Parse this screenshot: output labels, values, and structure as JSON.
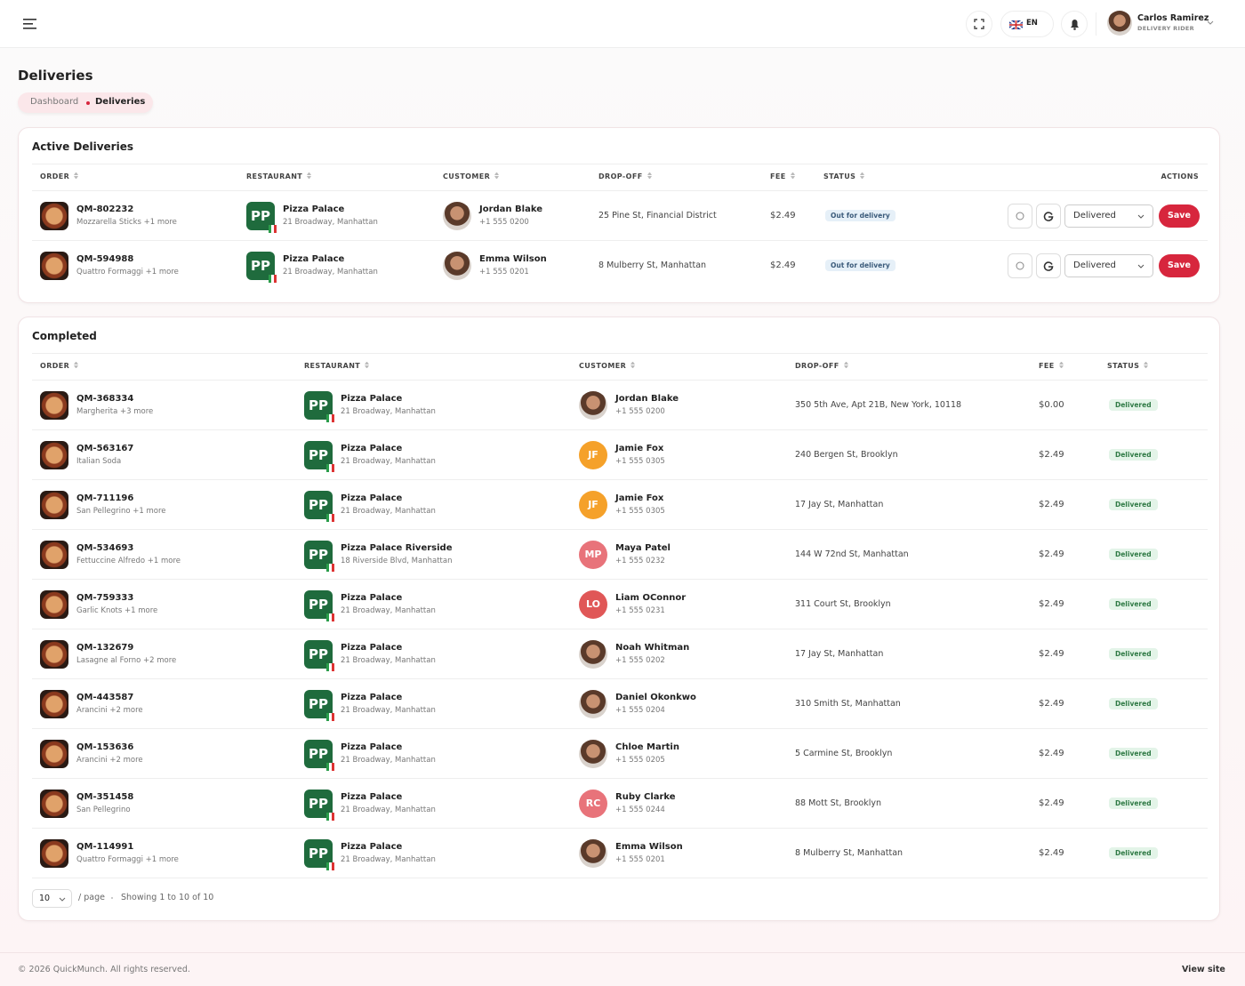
{
  "header": {
    "language": "EN",
    "user_name": "Carlos Ramirez",
    "user_role": "DELIVERY RIDER"
  },
  "page": {
    "title": "Deliveries",
    "breadcrumb": [
      "Dashboard",
      "Deliveries"
    ]
  },
  "restaurant_logo": "PP",
  "active": {
    "title": "Active Deliveries",
    "columns": [
      "ORDER",
      "RESTAURANT",
      "CUSTOMER",
      "DROP-OFF",
      "FEE",
      "STATUS",
      "ACTIONS"
    ],
    "rows": [
      {
        "order": "QM-802232",
        "items": "Mozzarella Sticks +1 more",
        "restaurant": "Pizza Palace",
        "restaurant_address": "21 Broadway, Manhattan",
        "customer": "Jordan Blake",
        "phone": "+1 555 0200",
        "dropoff": "25 Pine St, Financial District",
        "fee": "$2.49",
        "status": "Out for delivery",
        "select": "Delivered",
        "action": "Save"
      },
      {
        "order": "QM-594988",
        "items": "Quattro Formaggi +1 more",
        "restaurant": "Pizza Palace",
        "restaurant_address": "21 Broadway, Manhattan",
        "customer": "Emma Wilson",
        "phone": "+1 555 0201",
        "dropoff": "8 Mulberry St, Manhattan",
        "fee": "$2.49",
        "status": "Out for delivery",
        "select": "Delivered",
        "action": "Save"
      }
    ]
  },
  "completed": {
    "title": "Completed",
    "columns": [
      "ORDER",
      "RESTAURANT",
      "CUSTOMER",
      "DROP-OFF",
      "FEE",
      "STATUS"
    ],
    "rows": [
      {
        "order": "QM-368334",
        "items": "Margherita +3 more",
        "restaurant": "Pizza Palace",
        "restaurant_address": "21 Broadway, Manhattan",
        "customer": "Jordan Blake",
        "phone": "+1 555 0200",
        "dropoff": "350 5th Ave, Apt 21B, New York, 10118",
        "fee": "$0.00",
        "status": "Delivered"
      },
      {
        "order": "QM-563167",
        "items": "Italian Soda",
        "restaurant": "Pizza Palace",
        "restaurant_address": "21 Broadway, Manhattan",
        "customer": "Jamie Fox",
        "initials": "JF",
        "phone": "+1 555 0305",
        "dropoff": "240 Bergen St, Brooklyn",
        "fee": "$2.49",
        "status": "Delivered"
      },
      {
        "order": "QM-711196",
        "items": "San Pellegrino +1 more",
        "restaurant": "Pizza Palace",
        "restaurant_address": "21 Broadway, Manhattan",
        "customer": "Jamie Fox",
        "initials": "JF",
        "phone": "+1 555 0305",
        "dropoff": "17 Jay St, Manhattan",
        "fee": "$2.49",
        "status": "Delivered"
      },
      {
        "order": "QM-534693",
        "items": "Fettuccine Alfredo +1 more",
        "restaurant": "Pizza Palace Riverside",
        "restaurant_address": "18 Riverside Blvd, Manhattan",
        "customer": "Maya Patel",
        "initials": "MP",
        "phone": "+1 555 0232",
        "dropoff": "144 W 72nd St, Manhattan",
        "fee": "$2.49",
        "status": "Delivered"
      },
      {
        "order": "QM-759333",
        "items": "Garlic Knots +1 more",
        "restaurant": "Pizza Palace",
        "restaurant_address": "21 Broadway, Manhattan",
        "customer": "Liam OConnor",
        "initials": "LO",
        "phone": "+1 555 0231",
        "dropoff": "311 Court St, Brooklyn",
        "fee": "$2.49",
        "status": "Delivered"
      },
      {
        "order": "QM-132679",
        "items": "Lasagne al Forno +2 more",
        "restaurant": "Pizza Palace",
        "restaurant_address": "21 Broadway, Manhattan",
        "customer": "Noah Whitman",
        "phone": "+1 555 0202",
        "dropoff": "17 Jay St, Manhattan",
        "fee": "$2.49",
        "status": "Delivered"
      },
      {
        "order": "QM-443587",
        "items": "Arancini +2 more",
        "restaurant": "Pizza Palace",
        "restaurant_address": "21 Broadway, Manhattan",
        "customer": "Daniel Okonkwo",
        "phone": "+1 555 0204",
        "dropoff": "310 Smith St, Manhattan",
        "fee": "$2.49",
        "status": "Delivered"
      },
      {
        "order": "QM-153636",
        "items": "Arancini +2 more",
        "restaurant": "Pizza Palace",
        "restaurant_address": "21 Broadway, Manhattan",
        "customer": "Chloe Martin",
        "phone": "+1 555 0205",
        "dropoff": "5 Carmine St, Brooklyn",
        "fee": "$2.49",
        "status": "Delivered"
      },
      {
        "order": "QM-351458",
        "items": "San Pellegrino",
        "restaurant": "Pizza Palace",
        "restaurant_address": "21 Broadway, Manhattan",
        "customer": "Ruby Clarke",
        "initials": "RC",
        "phone": "+1 555 0244",
        "dropoff": "88 Mott St, Brooklyn",
        "fee": "$2.49",
        "status": "Delivered"
      },
      {
        "order": "QM-114991",
        "items": "Quattro Formaggi +1 more",
        "restaurant": "Pizza Palace",
        "restaurant_address": "21 Broadway, Manhattan",
        "customer": "Emma Wilson",
        "phone": "+1 555 0201",
        "dropoff": "8 Mulberry St, Manhattan",
        "fee": "$2.49",
        "status": "Delivered"
      }
    ]
  },
  "pagination": {
    "page_size": "10",
    "per_page": "/ page",
    "showing": "Showing 1 to 10 of 10"
  },
  "footer": {
    "copyright": "© 2026 QuickMunch. All rights reserved.",
    "link": "View site"
  }
}
